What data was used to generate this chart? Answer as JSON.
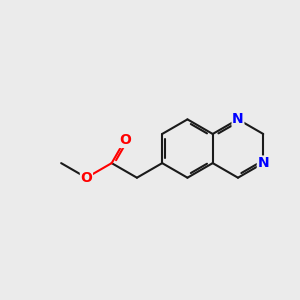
{
  "bg_color": "#ebebeb",
  "bond_color": "#1a1a1a",
  "n_color": "#0000ff",
  "o_color": "#ff0000",
  "lw": 1.5,
  "fs": 10,
  "bl": 1.0,
  "dbo": 0.08,
  "dbs": 0.18,
  "xlim": [
    0,
    10
  ],
  "ylim": [
    0,
    10
  ]
}
